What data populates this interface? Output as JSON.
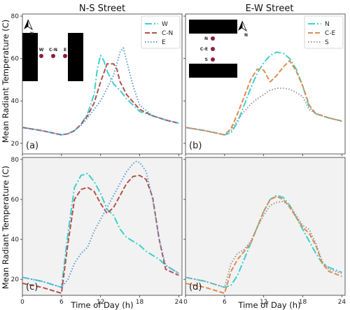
{
  "figure": {
    "col_titles": [
      "N-S Street",
      "E-W Street"
    ],
    "ylabel": "Mean Radiant Temperature (C)",
    "xlabel": "Time of Day (h)"
  },
  "colors": {
    "teal": "#3fcfcf",
    "brown": "#b5514c",
    "blue": "#5b9bd5",
    "orange": "#de8c4f",
    "gray": "#999999",
    "dark": "#1f1f1f",
    "marker": "#8b1c3b"
  },
  "insets": [
    {
      "compass_icon": "north-arrow-icon",
      "compass_letter": "N",
      "labels": [
        "W",
        "C-N",
        "E"
      ]
    },
    {
      "compass_icon": "north-arrow-icon",
      "compass_letter": "N",
      "labels": [
        "N",
        "C-E",
        "S"
      ]
    }
  ],
  "chart_data": [
    {
      "type": "line",
      "panel": "(a)",
      "title": "N-S Street",
      "xlabel": "",
      "ylabel": "Mean Radiant Temperature (C)",
      "xlim": [
        0,
        24.5
      ],
      "ylim": [
        15,
        81
      ],
      "xticks": [
        0,
        6,
        12,
        18,
        24
      ],
      "yticks": [
        20,
        40,
        60,
        80
      ],
      "grid": false,
      "legend_position": "top-right",
      "series": [
        {
          "name": "W",
          "x": [
            0,
            3,
            6,
            7,
            8,
            9,
            10,
            11,
            11.5,
            12,
            12.5,
            13,
            14,
            15,
            16,
            18,
            20,
            22,
            24
          ],
          "y": [
            27.5,
            26,
            24,
            24.5,
            26,
            29,
            34,
            43,
            55,
            61.5,
            59,
            54,
            48,
            45,
            41,
            35,
            33,
            31,
            29.5
          ]
        },
        {
          "name": "C-N",
          "x": [
            0,
            3,
            6,
            7,
            8,
            9,
            10,
            11,
            12,
            13,
            14,
            14.5,
            15,
            16,
            18,
            20,
            22,
            24
          ],
          "y": [
            27.5,
            26,
            24,
            24.5,
            26,
            29,
            33,
            39,
            49,
            57.5,
            57.5,
            55,
            49,
            43,
            36,
            33,
            31,
            29.5
          ]
        },
        {
          "name": "E",
          "x": [
            0,
            3,
            6,
            7,
            8,
            9,
            10,
            11,
            12,
            13,
            14,
            15,
            15.5,
            16,
            17,
            18,
            20,
            22,
            24
          ],
          "y": [
            27.5,
            26,
            24,
            24.5,
            26,
            28.5,
            32,
            36,
            40,
            46,
            52,
            63,
            65,
            59,
            47,
            38,
            33,
            31,
            29.5
          ]
        }
      ]
    },
    {
      "type": "line",
      "panel": "(b)",
      "title": "E-W Street",
      "xlabel": "",
      "ylabel": "",
      "xlim": [
        0,
        24.5
      ],
      "ylim": [
        15,
        81
      ],
      "xticks": [
        0,
        6,
        12,
        18,
        24
      ],
      "yticks": [
        20,
        40,
        60,
        80
      ],
      "grid": false,
      "legend_position": "top-right",
      "series": [
        {
          "name": "N",
          "x": [
            0,
            3,
            6,
            7,
            8,
            9,
            10,
            11,
            12,
            13,
            14,
            15,
            16,
            17,
            18,
            19,
            20,
            22,
            24
          ],
          "y": [
            27.5,
            26,
            24,
            25,
            30,
            38,
            46,
            53,
            58,
            61.5,
            63,
            62.5,
            60,
            55,
            47,
            37,
            34,
            32,
            30.5
          ]
        },
        {
          "name": "C-E",
          "x": [
            0,
            3,
            6,
            7,
            8,
            9,
            10,
            11,
            12,
            13,
            14,
            15,
            16,
            17,
            18,
            19,
            20,
            22,
            24
          ],
          "y": [
            27.5,
            26,
            24,
            27,
            34,
            42,
            50,
            55,
            54.5,
            49,
            52,
            56,
            59,
            54,
            47,
            38,
            34,
            32,
            30.5
          ]
        },
        {
          "name": "S",
          "x": [
            0,
            3,
            6,
            7,
            8,
            9,
            10,
            11,
            12,
            13,
            14,
            15,
            16,
            17,
            18,
            19,
            20,
            22,
            24
          ],
          "y": [
            27.5,
            26,
            24,
            26,
            31,
            35,
            38.5,
            41,
            43,
            45,
            46,
            46,
            45.5,
            44,
            42,
            36,
            34,
            32,
            30.5
          ]
        }
      ]
    },
    {
      "type": "line",
      "panel": "(c)",
      "title": "",
      "xlabel": "Time of Day (h)",
      "ylabel": "Mean Radiant Temperature (C)",
      "xlim": [
        0,
        24.5
      ],
      "ylim": [
        12,
        81
      ],
      "xticks": [
        0,
        6,
        12,
        18,
        24
      ],
      "yticks": [
        20,
        40,
        60,
        80
      ],
      "grid": false,
      "legend_position": "none",
      "series": [
        {
          "x": [
            0,
            3,
            6,
            7,
            8,
            9,
            10,
            11,
            12,
            13,
            14,
            15,
            16,
            17,
            18,
            19,
            20,
            21,
            22,
            24
          ],
          "y": [
            21,
            19,
            16,
            43,
            66,
            72,
            73,
            69,
            63,
            55,
            52,
            45,
            41,
            39,
            37,
            34,
            32,
            30,
            27,
            23
          ],
          "color": "teal"
        },
        {
          "x": [
            0,
            3,
            6,
            7,
            8,
            9,
            10,
            11,
            12,
            13,
            14,
            15,
            16,
            17,
            18,
            19,
            20,
            21,
            22,
            24
          ],
          "y": [
            18,
            16,
            13,
            38,
            60,
            65,
            66,
            64,
            58,
            53,
            56,
            62,
            68,
            71.5,
            72,
            70,
            61,
            40,
            25,
            22
          ],
          "color": "brown"
        },
        {
          "x": [
            0,
            3,
            6,
            7,
            8,
            9,
            10,
            11,
            12,
            13,
            14,
            15,
            16,
            17,
            17.5,
            18,
            19,
            20,
            21,
            22,
            24
          ],
          "y": [
            21,
            19,
            16,
            20,
            28,
            33,
            36,
            44,
            50,
            56,
            62,
            68,
            74,
            78,
            79,
            78.5,
            74,
            60,
            40,
            27,
            23
          ],
          "color": "blue"
        }
      ]
    },
    {
      "type": "line",
      "panel": "(d)",
      "title": "",
      "xlabel": "Time of Day (h)",
      "ylabel": "",
      "xlim": [
        0,
        24.5
      ],
      "ylim": [
        12,
        81
      ],
      "xticks": [
        0,
        6,
        12,
        18,
        24
      ],
      "yticks": [
        20,
        40,
        60,
        80
      ],
      "grid": false,
      "legend_position": "none",
      "series": [
        {
          "x": [
            0,
            3,
            6,
            7,
            8,
            9,
            10,
            11,
            12,
            13,
            14,
            15,
            16,
            17,
            18,
            19,
            20,
            21,
            22,
            24
          ],
          "y": [
            21,
            19,
            16,
            17,
            22,
            30,
            38,
            46,
            54,
            60,
            62,
            61,
            57,
            51,
            45,
            39,
            33,
            28,
            26,
            23.5
          ],
          "color": "teal"
        },
        {
          "x": [
            0,
            3,
            6,
            7,
            8,
            9,
            10,
            11,
            12,
            13,
            14,
            15,
            16,
            17,
            18,
            19,
            20,
            21,
            22,
            24
          ],
          "y": [
            18,
            16,
            13,
            24,
            30,
            34,
            38,
            46,
            54,
            60,
            61.5,
            60,
            56,
            51,
            46,
            43,
            37,
            28,
            24,
            21.5
          ],
          "color": "orange"
        },
        {
          "x": [
            0,
            3,
            6,
            7,
            8,
            9,
            10,
            11,
            12,
            13,
            14,
            15,
            16,
            17,
            18,
            19,
            20,
            21,
            22,
            24
          ],
          "y": [
            21,
            19,
            16,
            28,
            33,
            35,
            39,
            46,
            52,
            57,
            58.5,
            59,
            57,
            52,
            47,
            45,
            38,
            29,
            25,
            23
          ],
          "color": "gray"
        }
      ]
    }
  ]
}
